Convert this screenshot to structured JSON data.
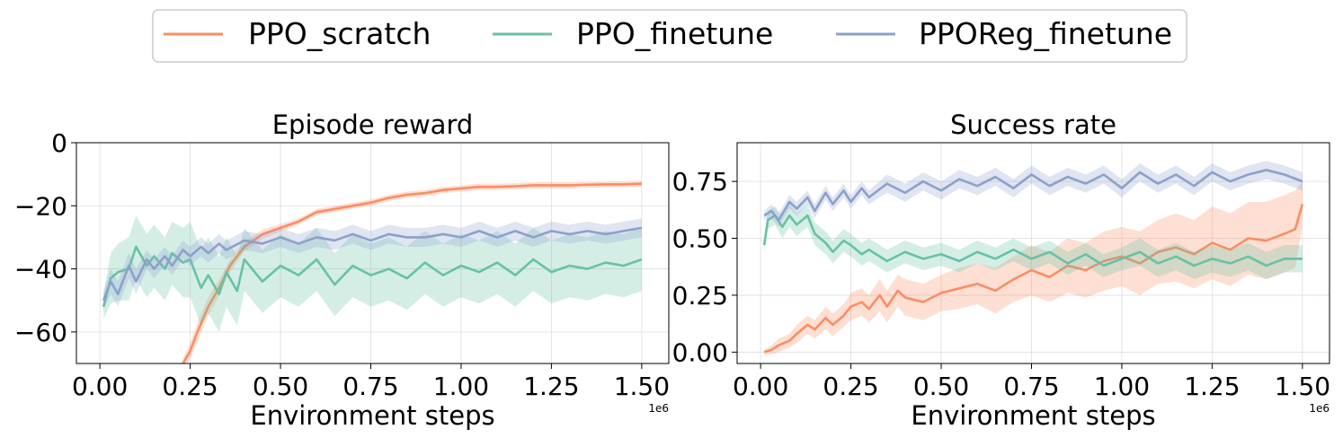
{
  "legend": [
    {
      "label": "PPO_scratch",
      "color": "#fc8d62"
    },
    {
      "label": "PPO_finetune",
      "color": "#66c2a5"
    },
    {
      "label": "PPOReg_finetune",
      "color": "#8da0cb"
    }
  ],
  "chart_data": [
    {
      "type": "line",
      "title": "Episode reward",
      "xlabel": "Environment steps",
      "ylabel": "",
      "x_offset_label": "1e6",
      "xlim": [
        -0.065,
        1.575
      ],
      "ylim": [
        -70,
        0
      ],
      "xticks": [
        0.0,
        0.25,
        0.5,
        0.75,
        1.0,
        1.25,
        1.5
      ],
      "xtick_labels": [
        "0.00",
        "0.25",
        "0.50",
        "0.75",
        "1.00",
        "1.25",
        "1.50"
      ],
      "yticks": [
        0,
        -20,
        -40,
        -60
      ],
      "ytick_labels": [
        "0",
        "−20",
        "−40",
        "−60"
      ],
      "grid": true,
      "series": [
        {
          "name": "PPO_scratch",
          "color": "#fc8d62",
          "x": [
            0.23,
            0.25,
            0.27,
            0.3,
            0.33,
            0.36,
            0.4,
            0.45,
            0.5,
            0.55,
            0.6,
            0.65,
            0.7,
            0.75,
            0.8,
            0.85,
            0.9,
            0.95,
            1.0,
            1.05,
            1.1,
            1.15,
            1.2,
            1.25,
            1.3,
            1.35,
            1.4,
            1.45,
            1.5
          ],
          "y": [
            -70,
            -66,
            -60,
            -52,
            -46,
            -39,
            -33,
            -29,
            -27,
            -25,
            -22,
            -21,
            -20,
            -19,
            -17.5,
            -16.5,
            -16,
            -15,
            -14.5,
            -14,
            -14,
            -13.8,
            -13.5,
            -13.5,
            -13.5,
            -13.3,
            -13.2,
            -13.2,
            -13
          ],
          "band": [
            1.5,
            2.5,
            3,
            3,
            2.5,
            2,
            1.5,
            1.5,
            1.2,
            1,
            1,
            1,
            1,
            1,
            1,
            1,
            1,
            1,
            1,
            1,
            1,
            1,
            1,
            1,
            1,
            1,
            1,
            1,
            1
          ]
        },
        {
          "name": "PPO_finetune",
          "color": "#66c2a5",
          "x": [
            0.01,
            0.03,
            0.05,
            0.08,
            0.1,
            0.13,
            0.15,
            0.18,
            0.2,
            0.23,
            0.25,
            0.28,
            0.3,
            0.33,
            0.35,
            0.38,
            0.4,
            0.45,
            0.5,
            0.55,
            0.6,
            0.65,
            0.7,
            0.75,
            0.8,
            0.85,
            0.9,
            0.95,
            1.0,
            1.05,
            1.1,
            1.15,
            1.2,
            1.25,
            1.3,
            1.35,
            1.4,
            1.45,
            1.5
          ],
          "y": [
            -52,
            -43,
            -41,
            -40,
            -33,
            -39,
            -36,
            -40,
            -35,
            -38,
            -37,
            -46,
            -42,
            -48,
            -41,
            -47,
            -37,
            -44,
            -39,
            -42,
            -37,
            -45,
            -39,
            -42,
            -40,
            -43,
            -38,
            -42,
            -39,
            -41,
            -38,
            -42,
            -37,
            -41,
            -39,
            -40,
            -38,
            -39,
            -37
          ],
          "band": [
            4,
            8,
            9,
            10,
            10,
            10,
            10,
            10,
            10,
            11,
            12,
            12,
            12,
            12,
            11,
            11,
            10,
            10,
            10,
            10,
            10,
            10,
            10,
            10,
            10,
            10,
            10,
            10,
            10,
            10,
            10,
            10,
            10,
            10,
            10,
            10,
            10,
            10,
            10
          ]
        },
        {
          "name": "PPOReg_finetune",
          "color": "#8da0cb",
          "x": [
            0.01,
            0.03,
            0.05,
            0.08,
            0.1,
            0.13,
            0.15,
            0.18,
            0.2,
            0.23,
            0.25,
            0.28,
            0.3,
            0.33,
            0.35,
            0.4,
            0.45,
            0.5,
            0.55,
            0.6,
            0.65,
            0.7,
            0.75,
            0.8,
            0.85,
            0.9,
            0.95,
            1.0,
            1.05,
            1.1,
            1.15,
            1.2,
            1.25,
            1.3,
            1.35,
            1.4,
            1.45,
            1.5
          ],
          "y": [
            -50,
            -44,
            -48,
            -39,
            -44,
            -37,
            -40,
            -36,
            -39,
            -34,
            -36,
            -33,
            -35,
            -32,
            -34,
            -31,
            -32,
            -30,
            -32,
            -30,
            -31,
            -29,
            -31,
            -29,
            -30,
            -30,
            -29,
            -30,
            -28,
            -30,
            -28,
            -30,
            -28,
            -29,
            -28,
            -29,
            -28,
            -27
          ],
          "band": [
            3,
            4,
            4,
            4,
            4,
            3,
            3,
            3,
            3,
            3,
            3,
            3,
            3,
            3,
            3,
            3,
            3,
            3,
            3,
            3,
            3,
            3,
            3,
            3,
            3,
            3,
            3,
            3,
            3,
            3,
            3,
            3,
            3,
            3,
            3,
            3,
            3,
            3
          ]
        }
      ]
    },
    {
      "type": "line",
      "title": "Success rate",
      "xlabel": "Environment steps",
      "ylabel": "",
      "x_offset_label": "1e6",
      "xlim": [
        -0.065,
        1.575
      ],
      "ylim": [
        -0.05,
        0.92
      ],
      "xticks": [
        0.0,
        0.25,
        0.5,
        0.75,
        1.0,
        1.25,
        1.5
      ],
      "xtick_labels": [
        "0.00",
        "0.25",
        "0.50",
        "0.75",
        "1.00",
        "1.25",
        "1.50"
      ],
      "yticks": [
        0.0,
        0.25,
        0.5,
        0.75
      ],
      "ytick_labels": [
        "0.00",
        "0.25",
        "0.50",
        "0.75"
      ],
      "grid": true,
      "series": [
        {
          "name": "PPO_scratch",
          "color": "#fc8d62",
          "x": [
            0.01,
            0.03,
            0.05,
            0.08,
            0.1,
            0.13,
            0.15,
            0.18,
            0.2,
            0.23,
            0.25,
            0.28,
            0.3,
            0.33,
            0.35,
            0.38,
            0.4,
            0.45,
            0.5,
            0.55,
            0.6,
            0.65,
            0.7,
            0.75,
            0.8,
            0.85,
            0.9,
            0.95,
            1.0,
            1.05,
            1.1,
            1.15,
            1.2,
            1.25,
            1.3,
            1.35,
            1.4,
            1.45,
            1.48,
            1.5
          ],
          "y": [
            0.0,
            0.01,
            0.03,
            0.05,
            0.08,
            0.12,
            0.1,
            0.15,
            0.12,
            0.16,
            0.2,
            0.22,
            0.19,
            0.25,
            0.2,
            0.27,
            0.24,
            0.22,
            0.26,
            0.28,
            0.3,
            0.27,
            0.32,
            0.36,
            0.33,
            0.38,
            0.36,
            0.4,
            0.42,
            0.39,
            0.44,
            0.46,
            0.43,
            0.48,
            0.45,
            0.5,
            0.49,
            0.52,
            0.54,
            0.65
          ],
          "band": [
            0.01,
            0.02,
            0.03,
            0.03,
            0.04,
            0.04,
            0.04,
            0.05,
            0.05,
            0.05,
            0.06,
            0.06,
            0.06,
            0.07,
            0.07,
            0.07,
            0.08,
            0.08,
            0.08,
            0.09,
            0.09,
            0.1,
            0.1,
            0.11,
            0.11,
            0.12,
            0.12,
            0.13,
            0.13,
            0.14,
            0.14,
            0.15,
            0.15,
            0.16,
            0.16,
            0.16,
            0.17,
            0.17,
            0.17,
            0.1
          ]
        },
        {
          "name": "PPO_finetune",
          "color": "#66c2a5",
          "x": [
            0.01,
            0.02,
            0.04,
            0.06,
            0.08,
            0.1,
            0.13,
            0.15,
            0.18,
            0.2,
            0.23,
            0.25,
            0.28,
            0.3,
            0.35,
            0.4,
            0.45,
            0.5,
            0.55,
            0.6,
            0.65,
            0.7,
            0.75,
            0.8,
            0.85,
            0.9,
            0.95,
            1.0,
            1.05,
            1.1,
            1.15,
            1.2,
            1.25,
            1.3,
            1.35,
            1.4,
            1.45,
            1.5
          ],
          "y": [
            0.47,
            0.58,
            0.6,
            0.55,
            0.6,
            0.56,
            0.6,
            0.52,
            0.48,
            0.44,
            0.49,
            0.47,
            0.43,
            0.45,
            0.4,
            0.44,
            0.41,
            0.43,
            0.4,
            0.44,
            0.41,
            0.45,
            0.41,
            0.44,
            0.39,
            0.43,
            0.38,
            0.41,
            0.44,
            0.39,
            0.42,
            0.38,
            0.41,
            0.39,
            0.42,
            0.38,
            0.41,
            0.41
          ],
          "band": [
            0.03,
            0.04,
            0.04,
            0.05,
            0.05,
            0.05,
            0.05,
            0.05,
            0.05,
            0.05,
            0.05,
            0.05,
            0.05,
            0.05,
            0.05,
            0.05,
            0.05,
            0.05,
            0.05,
            0.05,
            0.05,
            0.05,
            0.05,
            0.05,
            0.05,
            0.05,
            0.05,
            0.05,
            0.06,
            0.06,
            0.06,
            0.06,
            0.06,
            0.06,
            0.06,
            0.06,
            0.06,
            0.06
          ]
        },
        {
          "name": "PPOReg_finetune",
          "color": "#8da0cb",
          "x": [
            0.01,
            0.03,
            0.05,
            0.08,
            0.1,
            0.13,
            0.15,
            0.18,
            0.2,
            0.23,
            0.25,
            0.28,
            0.3,
            0.35,
            0.4,
            0.45,
            0.5,
            0.55,
            0.6,
            0.65,
            0.7,
            0.75,
            0.8,
            0.85,
            0.9,
            0.95,
            1.0,
            1.05,
            1.1,
            1.15,
            1.2,
            1.25,
            1.3,
            1.35,
            1.4,
            1.45,
            1.5
          ],
          "y": [
            0.6,
            0.62,
            0.58,
            0.66,
            0.63,
            0.68,
            0.62,
            0.7,
            0.65,
            0.71,
            0.66,
            0.72,
            0.68,
            0.74,
            0.7,
            0.75,
            0.71,
            0.76,
            0.73,
            0.77,
            0.72,
            0.78,
            0.73,
            0.77,
            0.74,
            0.78,
            0.72,
            0.79,
            0.74,
            0.78,
            0.73,
            0.79,
            0.75,
            0.78,
            0.8,
            0.78,
            0.75
          ],
          "band": [
            0.02,
            0.03,
            0.03,
            0.03,
            0.03,
            0.03,
            0.03,
            0.03,
            0.03,
            0.03,
            0.03,
            0.03,
            0.03,
            0.04,
            0.04,
            0.04,
            0.04,
            0.04,
            0.04,
            0.04,
            0.04,
            0.04,
            0.04,
            0.04,
            0.04,
            0.04,
            0.04,
            0.04,
            0.04,
            0.04,
            0.04,
            0.04,
            0.04,
            0.04,
            0.04,
            0.04,
            0.04
          ]
        }
      ]
    }
  ]
}
